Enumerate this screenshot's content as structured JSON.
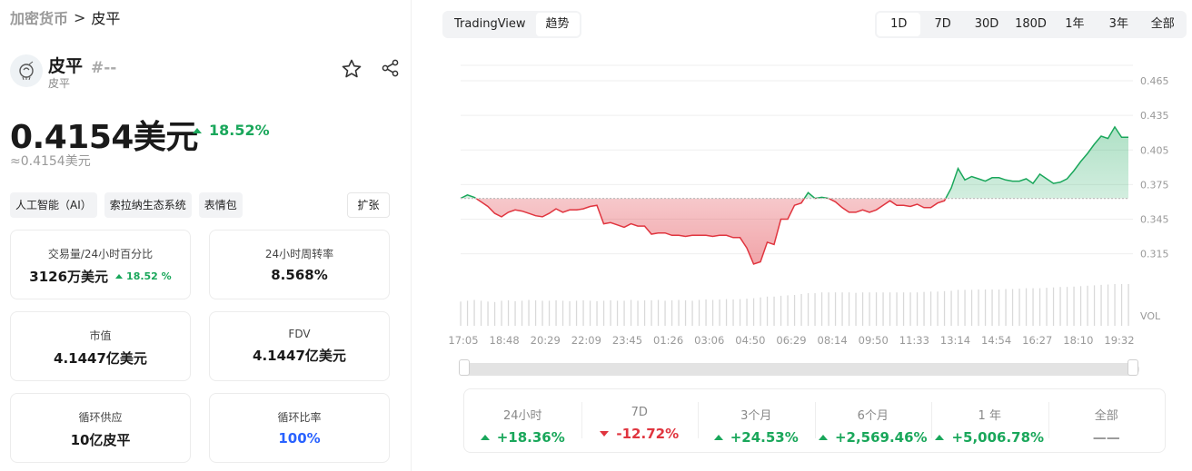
{
  "breadcrumb": {
    "parent": "加密货币",
    "separator": ">",
    "current": "皮平"
  },
  "coin": {
    "name": "皮平",
    "subname": "皮平",
    "rank": "#--"
  },
  "price": {
    "value": "0.4154美元",
    "change": "18.52%",
    "approx": "≈0.4154美元"
  },
  "tags": [
    "人工智能（AI）",
    "索拉纳生态系统",
    "表情包"
  ],
  "expand_label": "扩张",
  "stats": [
    {
      "label": "交易量/24小时百分比",
      "value": "3126万美元",
      "sub": "18.52 %"
    },
    {
      "label": "24小时周转率",
      "value": "8.568%"
    },
    {
      "label": "市值",
      "value": "4.1447亿美元"
    },
    {
      "label": "FDV",
      "value": "4.1447亿美元"
    },
    {
      "label": "循环供应",
      "value": "10亿皮平"
    },
    {
      "label": "循环比率",
      "value": "100%"
    }
  ],
  "chart_toggle": [
    "TradingView",
    "趋势"
  ],
  "periods": [
    "1D",
    "7D",
    "30D",
    "180D",
    "1年",
    "3年",
    "全部"
  ],
  "colors": {
    "up": "#1aa75b",
    "down": "#e0353f",
    "accent_blue": "#2962ff",
    "baseline": "#bfbfbf"
  },
  "chart_data": {
    "type": "area",
    "baseline": 0.363,
    "ylim": [
      0.295,
      0.48
    ],
    "y_ticks": [
      "0.465",
      "0.435",
      "0.405",
      "0.375",
      "0.345",
      "0.315"
    ],
    "y_tick_values": [
      0.465,
      0.435,
      0.405,
      0.375,
      0.345,
      0.315
    ],
    "vol_label": "VOL",
    "x_ticks": [
      "17:05",
      "18:48",
      "20:29",
      "22:09",
      "23:45",
      "01:26",
      "03:06",
      "04:50",
      "06:29",
      "08:14",
      "09:50",
      "11:33",
      "13:14",
      "14:54",
      "16:27",
      "18:10",
      "19:32"
    ],
    "values": [
      0.363,
      0.366,
      0.364,
      0.36,
      0.356,
      0.35,
      0.347,
      0.351,
      0.353,
      0.352,
      0.35,
      0.348,
      0.347,
      0.35,
      0.354,
      0.351,
      0.353,
      0.353,
      0.354,
      0.356,
      0.357,
      0.341,
      0.342,
      0.34,
      0.338,
      0.341,
      0.339,
      0.339,
      0.332,
      0.333,
      0.333,
      0.331,
      0.331,
      0.33,
      0.331,
      0.331,
      0.331,
      0.33,
      0.331,
      0.331,
      0.329,
      0.329,
      0.32,
      0.306,
      0.308,
      0.325,
      0.323,
      0.345,
      0.345,
      0.357,
      0.359,
      0.368,
      0.363,
      0.364,
      0.363,
      0.36,
      0.355,
      0.351,
      0.351,
      0.353,
      0.351,
      0.353,
      0.357,
      0.361,
      0.357,
      0.357,
      0.356,
      0.358,
      0.355,
      0.355,
      0.359,
      0.361,
      0.372,
      0.389,
      0.379,
      0.382,
      0.38,
      0.378,
      0.381,
      0.381,
      0.379,
      0.378,
      0.378,
      0.38,
      0.376,
      0.384,
      0.38,
      0.376,
      0.377,
      0.38,
      0.387,
      0.395,
      0.402,
      0.41,
      0.417,
      0.415,
      0.425,
      0.416,
      0.416
    ],
    "volume": [
      0.58,
      0.6,
      0.62,
      0.6,
      0.58,
      0.57,
      0.6,
      0.61,
      0.59,
      0.6,
      0.62,
      0.61,
      0.6,
      0.6,
      0.61,
      0.6,
      0.59,
      0.6,
      0.61,
      0.6,
      0.59,
      0.6,
      0.61,
      0.6,
      0.6,
      0.62,
      0.6,
      0.61,
      0.61,
      0.62,
      0.6,
      0.61,
      0.62,
      0.61,
      0.6,
      0.62,
      0.63,
      0.62,
      0.63,
      0.64,
      0.63,
      0.64,
      0.65,
      0.66,
      0.68,
      0.7,
      0.7,
      0.72,
      0.73,
      0.74,
      0.76,
      0.78,
      0.78,
      0.8,
      0.8,
      0.8,
      0.8,
      0.8,
      0.79,
      0.8,
      0.8,
      0.8,
      0.8,
      0.8,
      0.8,
      0.8,
      0.8,
      0.8,
      0.81,
      0.82,
      0.82,
      0.83,
      0.84,
      0.86,
      0.86,
      0.86,
      0.87,
      0.87,
      0.87,
      0.87,
      0.88,
      0.88,
      0.89,
      0.9,
      0.9,
      0.9,
      0.91,
      0.92,
      0.93,
      0.93,
      0.94,
      0.95,
      0.96,
      0.97,
      0.98,
      0.99,
      1.0,
      1.0,
      1.0
    ]
  },
  "performance": [
    {
      "label": "24小时",
      "value": "+18.36%",
      "dir": "up"
    },
    {
      "label": "7D",
      "value": "-12.72%",
      "dir": "down"
    },
    {
      "label": "3个月",
      "value": "+24.53%",
      "dir": "up"
    },
    {
      "label": "6个月",
      "value": "+2,569.46%",
      "dir": "up"
    },
    {
      "label": "1 年",
      "value": "+5,006.78%",
      "dir": "up"
    },
    {
      "label": "全部",
      "value": "——",
      "dir": "none"
    }
  ]
}
